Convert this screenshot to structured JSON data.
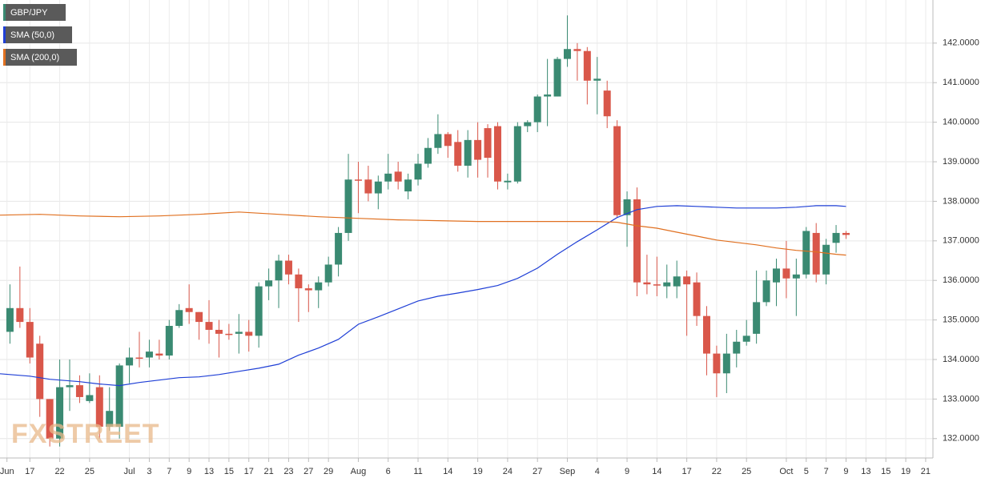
{
  "chart_data": {
    "type": "candlestick",
    "name": "GBP/JPY",
    "watermark": "FXSTREET",
    "up_color": "#3a8a72",
    "down_color": "#d9574a",
    "x": [
      1,
      2,
      3,
      4,
      5,
      6,
      7,
      8,
      9,
      10,
      11,
      12,
      13,
      14,
      15,
      16,
      17,
      18,
      19,
      20,
      21,
      22,
      23,
      24,
      25,
      26,
      27,
      28,
      29,
      30,
      31,
      32,
      33,
      34,
      35,
      36,
      37,
      38,
      39,
      40,
      41,
      42,
      43,
      44,
      45,
      46,
      47,
      48,
      49,
      50,
      51,
      52,
      53,
      54,
      55,
      56,
      57,
      58,
      59,
      60,
      61,
      62,
      63,
      64,
      65,
      66,
      67,
      68,
      69,
      70,
      71,
      72,
      73,
      74,
      75,
      76,
      77,
      78,
      79,
      80,
      81,
      82,
      83,
      84,
      85
    ],
    "open": [
      134.7,
      135.3,
      134.95,
      134.4,
      133.0,
      132.0,
      133.3,
      133.35,
      132.95,
      133.3,
      132.3,
      132.3,
      133.85,
      134.05,
      134.05,
      134.15,
      134.1,
      134.85,
      135.3,
      135.2,
      134.95,
      134.75,
      134.65,
      134.65,
      134.7,
      134.6,
      135.85,
      136.0,
      136.5,
      136.15,
      135.8,
      135.75,
      135.95,
      136.4,
      137.2,
      138.55,
      138.55,
      138.2,
      138.5,
      138.75,
      138.25,
      138.55,
      138.95,
      139.35,
      139.7,
      139.5,
      138.9,
      139.55,
      139.85,
      139.9,
      138.48,
      138.5,
      139.9,
      140.0,
      140.65,
      140.65,
      141.6,
      141.85,
      141.8,
      141.05,
      140.8,
      139.9,
      137.65,
      138.05,
      135.95,
      135.9,
      135.85,
      135.85,
      136.1,
      135.95,
      135.1,
      134.15,
      133.65,
      134.15,
      134.45,
      134.65,
      135.45,
      135.95,
      136.3,
      136.05,
      136.15,
      137.2,
      136.15,
      136.95,
      137.2
    ],
    "high": [
      135.9,
      136.35,
      135.3,
      134.6,
      133.0,
      134.0,
      134.0,
      133.6,
      133.65,
      133.6,
      133.3,
      133.9,
      134.3,
      134.7,
      134.5,
      134.5,
      135.0,
      135.4,
      135.9,
      135.2,
      135.5,
      135.0,
      134.9,
      135.15,
      135.0,
      135.95,
      136.3,
      136.65,
      136.65,
      136.3,
      135.9,
      136.1,
      136.6,
      137.35,
      139.2,
      139.0,
      138.9,
      138.65,
      139.2,
      139.0,
      138.7,
      139.2,
      139.6,
      140.2,
      139.75,
      139.8,
      139.8,
      140.0,
      139.95,
      140.0,
      138.7,
      140.0,
      140.05,
      140.7,
      141.6,
      141.65,
      142.7,
      142.0,
      141.9,
      141.65,
      141.05,
      140.05,
      138.25,
      138.35,
      136.65,
      136.6,
      136.4,
      136.5,
      136.25,
      136.2,
      135.35,
      134.35,
      134.65,
      134.75,
      135.0,
      136.25,
      136.25,
      136.55,
      137.0,
      136.55,
      137.35,
      137.45,
      137.05,
      137.4,
      137.25
    ],
    "low": [
      134.4,
      134.8,
      133.9,
      132.55,
      131.8,
      131.8,
      132.7,
      132.9,
      132.9,
      132.0,
      132.2,
      132.0,
      133.4,
      133.8,
      133.8,
      134.0,
      134.0,
      134.8,
      134.9,
      134.5,
      134.4,
      134.05,
      134.5,
      134.15,
      134.2,
      134.3,
      135.5,
      135.3,
      135.9,
      134.95,
      135.2,
      135.3,
      135.85,
      136.1,
      137.0,
      137.7,
      138.0,
      137.8,
      138.3,
      138.3,
      138.05,
      138.4,
      138.85,
      139.2,
      139.1,
      138.75,
      138.6,
      138.6,
      138.6,
      138.3,
      138.3,
      138.45,
      139.75,
      139.75,
      139.9,
      140.65,
      141.4,
      141.05,
      140.45,
      140.2,
      139.85,
      137.6,
      136.85,
      135.6,
      135.65,
      135.6,
      135.55,
      135.55,
      134.6,
      134.85,
      133.6,
      133.05,
      133.15,
      133.8,
      134.35,
      134.4,
      135.35,
      135.35,
      135.55,
      135.1,
      136.05,
      135.95,
      135.9,
      136.7,
      137.05
    ],
    "close": [
      135.3,
      134.95,
      134.05,
      133.0,
      132.0,
      133.3,
      133.35,
      133.05,
      133.1,
      132.3,
      132.7,
      133.85,
      134.05,
      134.05,
      134.2,
      134.1,
      134.85,
      135.25,
      135.2,
      134.95,
      134.75,
      134.65,
      134.65,
      134.7,
      134.6,
      135.85,
      136.0,
      136.5,
      136.15,
      135.8,
      135.75,
      135.95,
      136.4,
      137.2,
      138.55,
      138.55,
      138.2,
      138.5,
      138.7,
      138.5,
      138.55,
      138.95,
      139.35,
      139.7,
      139.4,
      138.9,
      139.55,
      139.05,
      139.1,
      138.5,
      138.52,
      139.9,
      140.0,
      140.65,
      140.7,
      141.6,
      141.85,
      141.8,
      141.05,
      141.1,
      140.15,
      137.65,
      138.05,
      135.95,
      135.9,
      135.88,
      135.95,
      136.1,
      135.9,
      135.1,
      134.15,
      133.65,
      134.15,
      134.45,
      134.6,
      135.45,
      136.0,
      136.3,
      136.05,
      136.15,
      137.25,
      136.15,
      136.9,
      137.2,
      137.15
    ],
    "lines": [
      {
        "name": "SMA (50,0)",
        "color": "#1f3fd6",
        "x": [
          0,
          3,
          5,
          8,
          10,
          12,
          14,
          16,
          18,
          20,
          22,
          24,
          26,
          28,
          30,
          32,
          34,
          36,
          38,
          40,
          42,
          44,
          46,
          48,
          50,
          52,
          54,
          56,
          58,
          60,
          62,
          64,
          66,
          68,
          70,
          72,
          74,
          76,
          78,
          80,
          82,
          84,
          85
        ],
        "values": [
          133.64,
          133.58,
          133.5,
          133.44,
          133.38,
          133.34,
          133.42,
          133.48,
          133.54,
          133.56,
          133.62,
          133.7,
          133.78,
          133.88,
          134.11,
          134.29,
          134.51,
          134.89,
          135.08,
          135.28,
          135.48,
          135.6,
          135.68,
          135.77,
          135.87,
          136.05,
          136.31,
          136.66,
          136.98,
          137.28,
          137.59,
          137.79,
          137.87,
          137.89,
          137.87,
          137.85,
          137.83,
          137.83,
          137.83,
          137.85,
          137.89,
          137.89,
          137.87
        ]
      },
      {
        "name": "SMA (200,0)",
        "color": "#e07020",
        "x": [
          0,
          4,
          8,
          12,
          16,
          20,
          24,
          28,
          32,
          36,
          40,
          44,
          48,
          52,
          56,
          60,
          62,
          64,
          66,
          68,
          70,
          72,
          74,
          76,
          78,
          80,
          82,
          84,
          85
        ],
        "values": [
          137.65,
          137.67,
          137.63,
          137.61,
          137.63,
          137.67,
          137.73,
          137.67,
          137.61,
          137.57,
          137.53,
          137.51,
          137.49,
          137.49,
          137.49,
          137.49,
          137.47,
          137.38,
          137.32,
          137.22,
          137.12,
          137.02,
          136.96,
          136.9,
          136.82,
          136.76,
          136.72,
          136.66,
          136.64
        ]
      }
    ],
    "xlim": [
      0,
      93.73
    ],
    "ylim": [
      131.51,
      143.09
    ],
    "yticks": [
      {
        "value": 132,
        "label": "132.0000"
      },
      {
        "value": 133,
        "label": "133.0000"
      },
      {
        "value": 134,
        "label": "134.0000"
      },
      {
        "value": 135,
        "label": "135.0000"
      },
      {
        "value": 136,
        "label": "136.0000"
      },
      {
        "value": 137,
        "label": "137.0000"
      },
      {
        "value": 138,
        "label": "138.0000"
      },
      {
        "value": 139,
        "label": "139.0000"
      },
      {
        "value": 140,
        "label": "140.0000"
      },
      {
        "value": 141,
        "label": "141.0000"
      },
      {
        "value": 142,
        "label": "142.0000"
      }
    ],
    "xticks": [
      {
        "value": 0.7,
        "label": "Jun"
      },
      {
        "value": 3,
        "label": "17"
      },
      {
        "value": 6,
        "label": "22"
      },
      {
        "value": 9,
        "label": "25"
      },
      {
        "value": 13,
        "label": "Jul"
      },
      {
        "value": 15,
        "label": "3"
      },
      {
        "value": 17,
        "label": "7"
      },
      {
        "value": 19,
        "label": "9"
      },
      {
        "value": 21,
        "label": "13"
      },
      {
        "value": 23,
        "label": "15"
      },
      {
        "value": 25,
        "label": "17"
      },
      {
        "value": 27,
        "label": "21"
      },
      {
        "value": 29,
        "label": "23"
      },
      {
        "value": 31,
        "label": "27"
      },
      {
        "value": 33,
        "label": "29"
      },
      {
        "value": 36,
        "label": "Aug"
      },
      {
        "value": 39,
        "label": "6"
      },
      {
        "value": 42,
        "label": "11"
      },
      {
        "value": 45,
        "label": "14"
      },
      {
        "value": 48,
        "label": "19"
      },
      {
        "value": 51,
        "label": "24"
      },
      {
        "value": 54,
        "label": "27"
      },
      {
        "value": 57,
        "label": "Sep"
      },
      {
        "value": 60,
        "label": "4"
      },
      {
        "value": 63,
        "label": "9"
      },
      {
        "value": 66,
        "label": "14"
      },
      {
        "value": 69,
        "label": "17"
      },
      {
        "value": 72,
        "label": "22"
      },
      {
        "value": 75,
        "label": "25"
      },
      {
        "value": 79,
        "label": "Oct"
      },
      {
        "value": 81,
        "label": "5"
      },
      {
        "value": 83,
        "label": "7"
      },
      {
        "value": 85,
        "label": "9"
      },
      {
        "value": 87,
        "label": "13"
      },
      {
        "value": 89,
        "label": "15"
      },
      {
        "value": 91,
        "label": "19"
      },
      {
        "value": 93,
        "label": "21"
      }
    ],
    "grid": true
  }
}
